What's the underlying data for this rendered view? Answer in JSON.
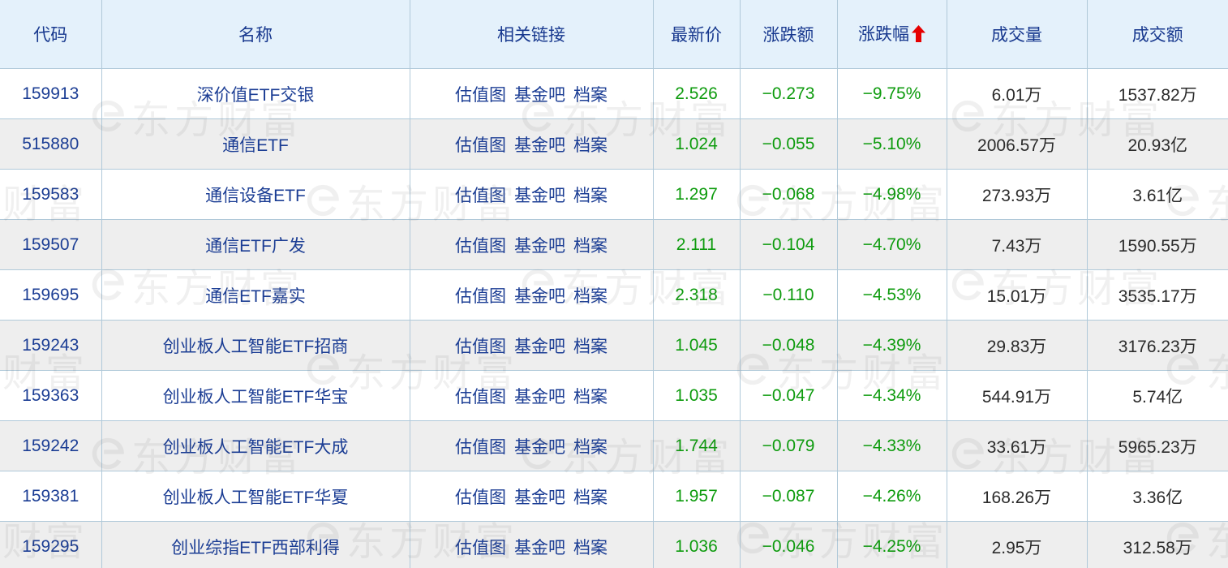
{
  "watermark": {
    "text": "东方财富"
  },
  "table": {
    "columns": {
      "code": {
        "label": "代码"
      },
      "name": {
        "label": "名称"
      },
      "links": {
        "label": "相关链接"
      },
      "price": {
        "label": "最新价"
      },
      "change": {
        "label": "涨跌额"
      },
      "pct": {
        "label": "涨跌幅",
        "sort": "ascending"
      },
      "volume": {
        "label": "成交量"
      },
      "turnover": {
        "label": "成交额"
      }
    },
    "link_labels": [
      "估值图",
      "基金吧",
      "档案"
    ],
    "rows": [
      {
        "code": "159913",
        "name": "深价值ETF交银",
        "price": "2.526",
        "change": "−0.273",
        "pct": "−9.75%",
        "volume": "6.01万",
        "turnover": "1537.82万"
      },
      {
        "code": "515880",
        "name": "通信ETF",
        "price": "1.024",
        "change": "−0.055",
        "pct": "−5.10%",
        "volume": "2006.57万",
        "turnover": "20.93亿"
      },
      {
        "code": "159583",
        "name": "通信设备ETF",
        "price": "1.297",
        "change": "−0.068",
        "pct": "−4.98%",
        "volume": "273.93万",
        "turnover": "3.61亿"
      },
      {
        "code": "159507",
        "name": "通信ETF广发",
        "price": "2.111",
        "change": "−0.104",
        "pct": "−4.70%",
        "volume": "7.43万",
        "turnover": "1590.55万"
      },
      {
        "code": "159695",
        "name": "通信ETF嘉实",
        "price": "2.318",
        "change": "−0.110",
        "pct": "−4.53%",
        "volume": "15.01万",
        "turnover": "3535.17万"
      },
      {
        "code": "159243",
        "name": "创业板人工智能ETF招商",
        "price": "1.045",
        "change": "−0.048",
        "pct": "−4.39%",
        "volume": "29.83万",
        "turnover": "3176.23万"
      },
      {
        "code": "159363",
        "name": "创业板人工智能ETF华宝",
        "price": "1.035",
        "change": "−0.047",
        "pct": "−4.34%",
        "volume": "544.91万",
        "turnover": "5.74亿"
      },
      {
        "code": "159242",
        "name": "创业板人工智能ETF大成",
        "price": "1.744",
        "change": "−0.079",
        "pct": "−4.33%",
        "volume": "33.61万",
        "turnover": "5965.23万"
      },
      {
        "code": "159381",
        "name": "创业板人工智能ETF华夏",
        "price": "1.957",
        "change": "−0.087",
        "pct": "−4.26%",
        "volume": "168.26万",
        "turnover": "3.36亿"
      },
      {
        "code": "159295",
        "name": "创业综指ETF西部利得",
        "price": "1.036",
        "change": "−0.046",
        "pct": "−4.25%",
        "volume": "2.95万",
        "turnover": "312.58万"
      }
    ]
  },
  "colors": {
    "down_green": "#0d9b0d",
    "link_blue": "#1b3d94",
    "header_blue": "#17388e",
    "sort_arrow_red": "#e60000",
    "header_bg": "#e4f1fb",
    "row_alt_bg": "#eeeeee",
    "border": "#b0c9d9",
    "value_dark": "#2b2b2b"
  }
}
